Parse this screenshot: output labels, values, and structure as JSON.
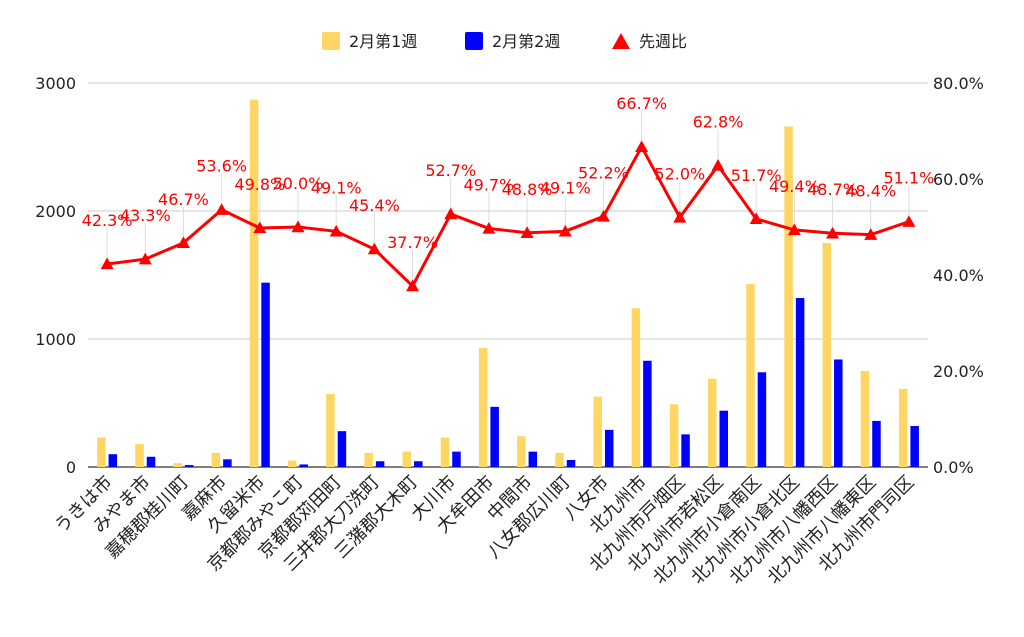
{
  "chart_data": {
    "type": "bar",
    "categories": [
      "うきは市",
      "みやま市",
      "嘉穂郡桂川町",
      "嘉麻市",
      "久留米市",
      "京都郡みやこ町",
      "京都郡苅田町",
      "三井郡大刀洗町",
      "三潴郡大木町",
      "大川市",
      "大牟田市",
      "中間市",
      "八女郡広川町",
      "八女市",
      "北九州市",
      "北九州市戸畑区",
      "北九州市若松区",
      "北九州市小倉南区",
      "北九州市小倉北区",
      "北九州市八幡西区",
      "北九州市八幡東区",
      "北九州市門司区"
    ],
    "series": [
      {
        "name": "2月第1週",
        "kind": "bar",
        "axis": "left",
        "color": "#fdd663",
        "values": [
          230,
          180,
          30,
          110,
          2870,
          50,
          570,
          110,
          120,
          230,
          930,
          240,
          110,
          550,
          1240,
          490,
          690,
          1430,
          2660,
          1750,
          750,
          610
        ]
      },
      {
        "name": "2月第2週",
        "kind": "bar",
        "axis": "left",
        "color": "#0000ff",
        "values": [
          100,
          80,
          15,
          60,
          1440,
          20,
          280,
          45,
          45,
          120,
          470,
          120,
          55,
          290,
          830,
          255,
          440,
          740,
          1320,
          840,
          360,
          320
        ]
      },
      {
        "name": "先週比",
        "kind": "line",
        "axis": "right",
        "marker": "triangle",
        "color": "#ff0000",
        "values": [
          42.3,
          43.3,
          46.7,
          53.6,
          49.8,
          50.0,
          49.1,
          45.4,
          37.7,
          52.7,
          49.7,
          48.8,
          49.1,
          52.2,
          66.7,
          52.0,
          62.8,
          51.7,
          49.4,
          48.7,
          48.4,
          51.1
        ]
      }
    ],
    "line_labels": [
      "42.3%",
      "43.3%",
      "46.7%",
      "53.6%",
      "49.8%",
      "50.0%",
      "49.1%",
      "45.4%",
      "37.7%",
      "52.7%",
      "49.7%",
      "48.8%",
      "49.1%",
      "52.2%",
      "66.7%",
      "52.0%",
      "62.8%",
      "51.7%",
      "49.4%",
      "48.7%",
      "48.4%",
      "51.1%"
    ],
    "y_left": {
      "range": [
        0,
        3000
      ],
      "ticks": [
        "0",
        "1000",
        "2000",
        "3000"
      ],
      "tick_values": [
        0,
        1000,
        2000,
        3000
      ]
    },
    "y_right": {
      "range": [
        0,
        80
      ],
      "ticks": [
        "0.0%",
        "20.0%",
        "40.0%",
        "60.0%",
        "80.0%"
      ],
      "tick_values": [
        0,
        20,
        40,
        60,
        80
      ]
    },
    "legend_position": "top",
    "grid": true,
    "title": "",
    "xlabel": "",
    "ylabel": ""
  }
}
